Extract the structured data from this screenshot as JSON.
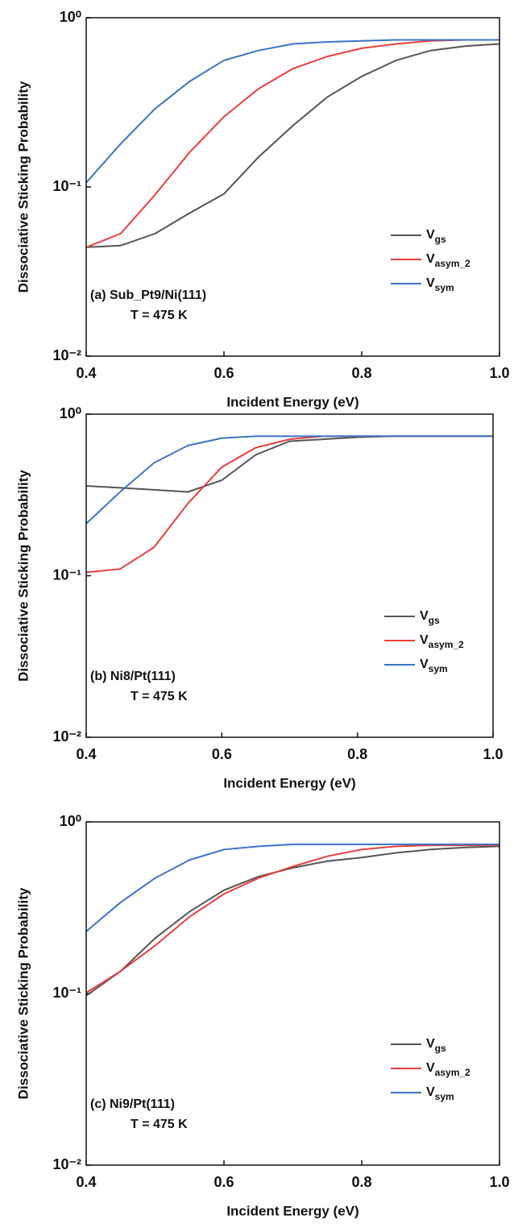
{
  "chart_data": [
    {
      "type": "line",
      "x_label": "Incident Energy (eV)",
      "y_label": "Dissociative Sticking Probability",
      "annotations": [
        "(a) Sub_Pt9/Ni(111)",
        "T = 475 K"
      ],
      "y_log": true,
      "legend": "lower right",
      "xlim": [
        0.4,
        1
      ],
      "xticks": [
        0.4,
        0.6,
        0.8,
        {
          "value": 1,
          "label": "1.0"
        }
      ],
      "ylim": [
        0.01,
        1
      ],
      "yticks": [
        {
          "value": 0.01,
          "label": "10⁻²"
        },
        {
          "value": 0.1,
          "label": "10⁻¹"
        },
        {
          "value": 1,
          "label": "10⁰"
        }
      ],
      "x": [
        0.4,
        0.45,
        0.5,
        0.55,
        0.6,
        0.65,
        0.7,
        0.75,
        0.8,
        0.85,
        0.9,
        0.95,
        1
      ],
      "series": [
        {
          "name": "Vgs",
          "color": "#555555",
          "values": [
            0.044,
            0.045,
            0.053,
            0.07,
            0.091,
            0.15,
            0.23,
            0.34,
            0.45,
            0.56,
            0.64,
            0.68,
            0.7
          ]
        },
        {
          "name": "Vasym_2",
          "color": "#e8403f",
          "values": [
            0.044,
            0.053,
            0.09,
            0.16,
            0.26,
            0.38,
            0.5,
            0.59,
            0.66,
            0.7,
            0.73,
            0.74,
            0.74
          ]
        },
        {
          "name": "Vsym",
          "color": "#3b73c8",
          "values": [
            0.106,
            0.18,
            0.29,
            0.42,
            0.56,
            0.64,
            0.7,
            0.72,
            0.73,
            0.74,
            0.74,
            0.74,
            0.74
          ]
        }
      ]
    },
    {
      "type": "line",
      "x_label": "Incident Energy (eV)",
      "y_label": "Dissociative Sticking Probability",
      "annotations": [
        "(b) Ni8/Pt(111)",
        "T = 475 K"
      ],
      "y_log": true,
      "legend": "lower right",
      "xlim": [
        0.4,
        1
      ],
      "xticks": [
        0.4,
        0.6,
        0.8,
        {
          "value": 1,
          "label": "1.0"
        }
      ],
      "ylim": [
        0.01,
        1
      ],
      "yticks": [
        {
          "value": 0.01,
          "label": "10⁻²"
        },
        {
          "value": 0.1,
          "label": "10⁻¹"
        },
        {
          "value": 1,
          "label": "10⁰"
        }
      ],
      "x": [
        0.4,
        0.45,
        0.5,
        0.55,
        0.6,
        0.65,
        0.7,
        0.75,
        0.8,
        0.85,
        0.9,
        0.95,
        1
      ],
      "series": [
        {
          "name": "Vgs",
          "color": "#555555",
          "values": [
            0.36,
            0.35,
            0.34,
            0.33,
            0.39,
            0.56,
            0.68,
            0.7,
            0.72,
            0.73,
            0.73,
            0.73,
            0.73
          ]
        },
        {
          "name": "Vasym_2",
          "color": "#e8403f",
          "values": [
            0.105,
            0.11,
            0.15,
            0.28,
            0.47,
            0.62,
            0.7,
            0.73,
            0.73,
            0.73,
            0.73,
            0.73,
            0.73
          ]
        },
        {
          "name": "Vsym",
          "color": "#3b73c8",
          "values": [
            0.21,
            0.33,
            0.5,
            0.64,
            0.71,
            0.73,
            0.73,
            0.73,
            0.73,
            0.73,
            0.73,
            0.73,
            0.73
          ]
        }
      ]
    },
    {
      "type": "line",
      "x_label": "Incident Energy (eV)",
      "y_label": "Dissociative Sticking Probability",
      "annotations": [
        "(c) Ni9/Pt(111)",
        "T = 475 K"
      ],
      "y_log": true,
      "legend": "lower right",
      "xlim": [
        0.4,
        1
      ],
      "xticks": [
        0.4,
        0.6,
        0.8,
        {
          "value": 1,
          "label": "1.0"
        }
      ],
      "ylim": [
        0.01,
        1
      ],
      "yticks": [
        {
          "value": 0.01,
          "label": "10⁻²"
        },
        {
          "value": 0.1,
          "label": "10⁻¹"
        },
        {
          "value": 1,
          "label": "10⁰"
        }
      ],
      "x": [
        0.4,
        0.45,
        0.5,
        0.55,
        0.6,
        0.65,
        0.7,
        0.75,
        0.8,
        0.85,
        0.9,
        0.95,
        1
      ],
      "series": [
        {
          "name": "Vgs",
          "color": "#555555",
          "values": [
            0.097,
            0.135,
            0.21,
            0.3,
            0.4,
            0.48,
            0.54,
            0.59,
            0.62,
            0.66,
            0.69,
            0.71,
            0.72
          ]
        },
        {
          "name": "Vasym_2",
          "color": "#e8403f",
          "values": [
            0.101,
            0.135,
            0.19,
            0.28,
            0.38,
            0.47,
            0.55,
            0.63,
            0.69,
            0.72,
            0.73,
            0.73,
            0.73
          ]
        },
        {
          "name": "Vsym",
          "color": "#3b73c8",
          "values": [
            0.23,
            0.34,
            0.47,
            0.6,
            0.69,
            0.72,
            0.74,
            0.74,
            0.74,
            0.74,
            0.74,
            0.74,
            0.74
          ]
        }
      ]
    }
  ]
}
